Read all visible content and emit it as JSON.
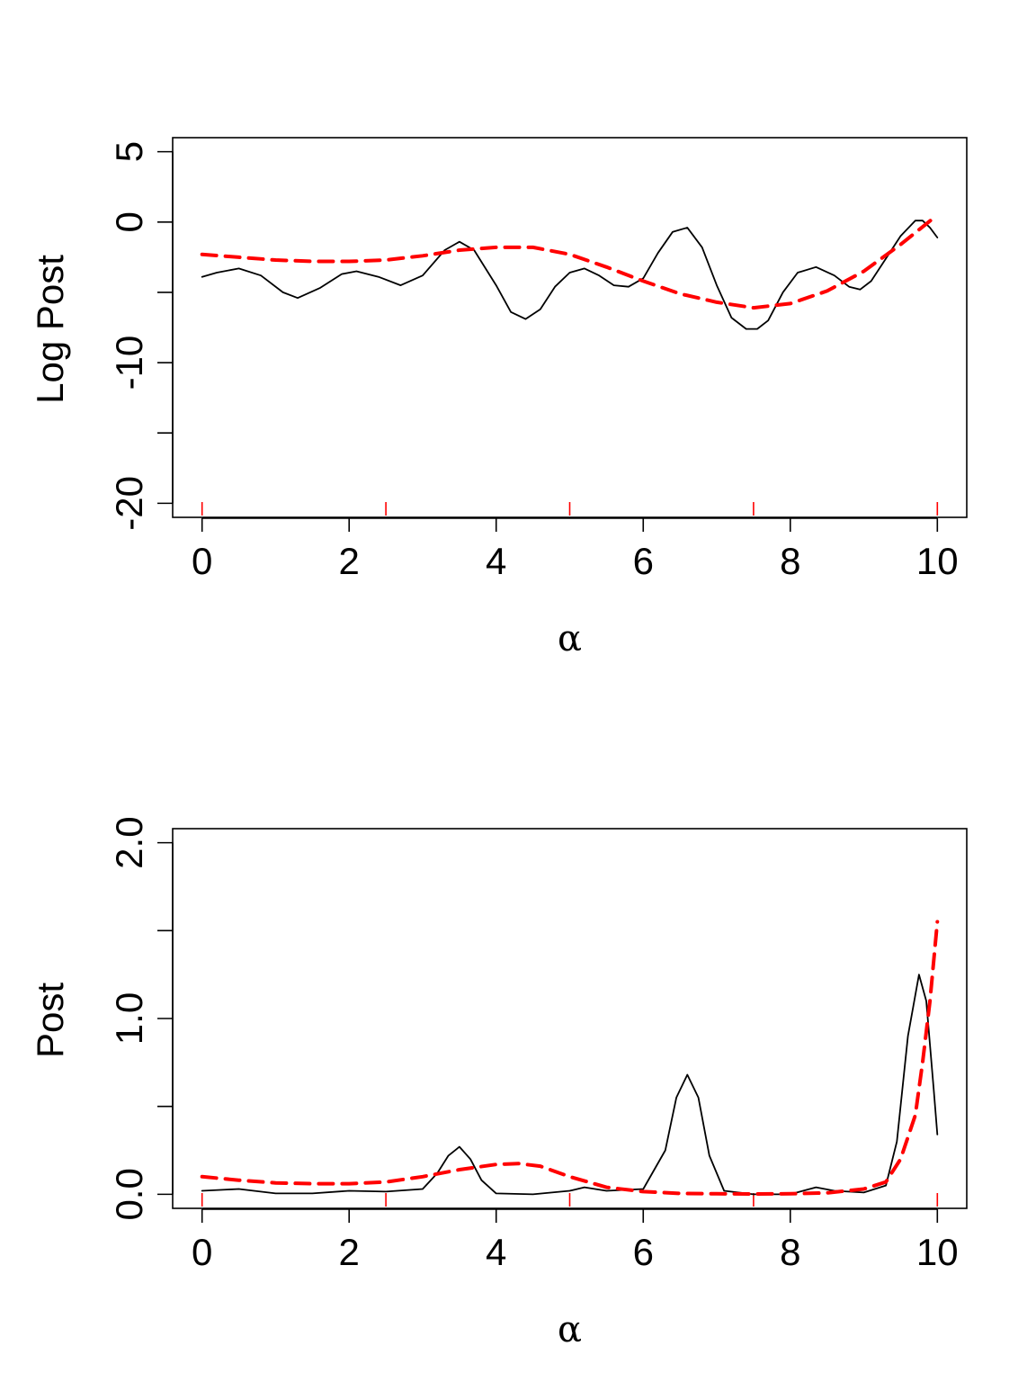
{
  "chart_data": [
    {
      "type": "line",
      "title": "",
      "xlabel": "α",
      "ylabel": "Log Post",
      "xlim": [
        -0.4,
        10.4
      ],
      "ylim": [
        -21,
        6
      ],
      "xticks": [
        0,
        2,
        4,
        6,
        8,
        10
      ],
      "xtick_labels": [
        "0",
        "2",
        "4",
        "6",
        "8",
        "10"
      ],
      "yticks": [
        -20,
        -15,
        -10,
        -5,
        0,
        5
      ],
      "ytick_labels": [
        "-20",
        "",
        "-10",
        "",
        "0",
        "5"
      ],
      "rug": [
        0,
        2.5,
        5,
        7.5,
        10
      ],
      "series": [
        {
          "style": "solid",
          "color": "#000000",
          "x": [
            0,
            0.2,
            0.5,
            0.8,
            1.1,
            1.3,
            1.6,
            1.9,
            2.1,
            2.4,
            2.7,
            3.0,
            3.3,
            3.5,
            3.7,
            4.0,
            4.2,
            4.4,
            4.6,
            4.8,
            5.0,
            5.2,
            5.4,
            5.6,
            5.8,
            6.0,
            6.2,
            6.4,
            6.6,
            6.8,
            7.0,
            7.2,
            7.4,
            7.55,
            7.7,
            7.9,
            8.1,
            8.35,
            8.6,
            8.8,
            8.95,
            9.1,
            9.3,
            9.5,
            9.7,
            9.8,
            9.9,
            10.0
          ],
          "y": [
            -3.9,
            -3.6,
            -3.3,
            -3.8,
            -5.0,
            -5.4,
            -4.7,
            -3.7,
            -3.5,
            -3.9,
            -4.5,
            -3.8,
            -2.0,
            -1.4,
            -2.0,
            -4.5,
            -6.4,
            -6.9,
            -6.2,
            -4.6,
            -3.6,
            -3.3,
            -3.8,
            -4.5,
            -4.6,
            -4.0,
            -2.2,
            -0.7,
            -0.4,
            -1.8,
            -4.5,
            -6.8,
            -7.6,
            -7.6,
            -7.0,
            -5.0,
            -3.6,
            -3.2,
            -3.8,
            -4.6,
            -4.8,
            -4.2,
            -2.6,
            -1.0,
            0.1,
            0.1,
            -0.4,
            -1.1
          ]
        },
        {
          "style": "dashed",
          "color": "#ff0000",
          "x": [
            0,
            0.5,
            1.0,
            1.5,
            2.0,
            2.5,
            3.0,
            3.5,
            4.0,
            4.5,
            5.0,
            5.5,
            6.0,
            6.5,
            7.0,
            7.5,
            8.0,
            8.5,
            9.0,
            9.5,
            10.0
          ],
          "y": [
            -2.3,
            -2.5,
            -2.7,
            -2.8,
            -2.8,
            -2.7,
            -2.4,
            -2.0,
            -1.8,
            -1.8,
            -2.3,
            -3.2,
            -4.2,
            -5.1,
            -5.7,
            -6.1,
            -5.8,
            -4.9,
            -3.5,
            -1.6,
            0.5
          ]
        }
      ]
    },
    {
      "type": "line",
      "title": "",
      "xlabel": "α",
      "ylabel": "Post",
      "xlim": [
        -0.4,
        10.4
      ],
      "ylim": [
        -0.08,
        2.08
      ],
      "xticks": [
        0,
        2,
        4,
        6,
        8,
        10
      ],
      "xtick_labels": [
        "0",
        "2",
        "4",
        "6",
        "8",
        "10"
      ],
      "yticks": [
        0.0,
        0.5,
        1.0,
        1.5,
        2.0
      ],
      "ytick_labels": [
        "0.0",
        "",
        "1.0",
        "",
        "2.0"
      ],
      "rug": [
        0,
        2.5,
        5,
        7.5,
        10
      ],
      "series": [
        {
          "style": "solid",
          "color": "#000000",
          "x": [
            0,
            0.5,
            1.0,
            1.5,
            2.0,
            2.5,
            3.0,
            3.2,
            3.35,
            3.5,
            3.65,
            3.8,
            4.0,
            4.5,
            5.0,
            5.2,
            5.5,
            6.0,
            6.3,
            6.45,
            6.6,
            6.75,
            6.9,
            7.1,
            7.5,
            8.0,
            8.35,
            8.6,
            9.0,
            9.3,
            9.45,
            9.6,
            9.75,
            9.85,
            9.95,
            10.0
          ],
          "y": [
            0.02,
            0.03,
            0.005,
            0.005,
            0.02,
            0.015,
            0.03,
            0.12,
            0.22,
            0.27,
            0.2,
            0.08,
            0.005,
            0.0,
            0.02,
            0.04,
            0.02,
            0.03,
            0.25,
            0.55,
            0.68,
            0.55,
            0.22,
            0.02,
            0.0,
            0.0,
            0.04,
            0.02,
            0.01,
            0.05,
            0.3,
            0.9,
            1.25,
            1.1,
            0.6,
            0.34
          ]
        },
        {
          "style": "dashed",
          "color": "#ff0000",
          "x": [
            0,
            0.5,
            1.0,
            1.5,
            2.0,
            2.5,
            3.0,
            3.5,
            4.0,
            4.3,
            4.6,
            5.0,
            5.5,
            6.0,
            6.5,
            7.0,
            7.5,
            8.0,
            8.5,
            9.0,
            9.3,
            9.5,
            9.7,
            9.8,
            9.9,
            10.0
          ],
          "y": [
            0.1,
            0.08,
            0.065,
            0.06,
            0.06,
            0.07,
            0.1,
            0.14,
            0.17,
            0.175,
            0.16,
            0.1,
            0.04,
            0.015,
            0.005,
            0.003,
            0.002,
            0.003,
            0.008,
            0.03,
            0.07,
            0.2,
            0.45,
            0.75,
            1.1,
            1.55
          ]
        }
      ]
    }
  ]
}
